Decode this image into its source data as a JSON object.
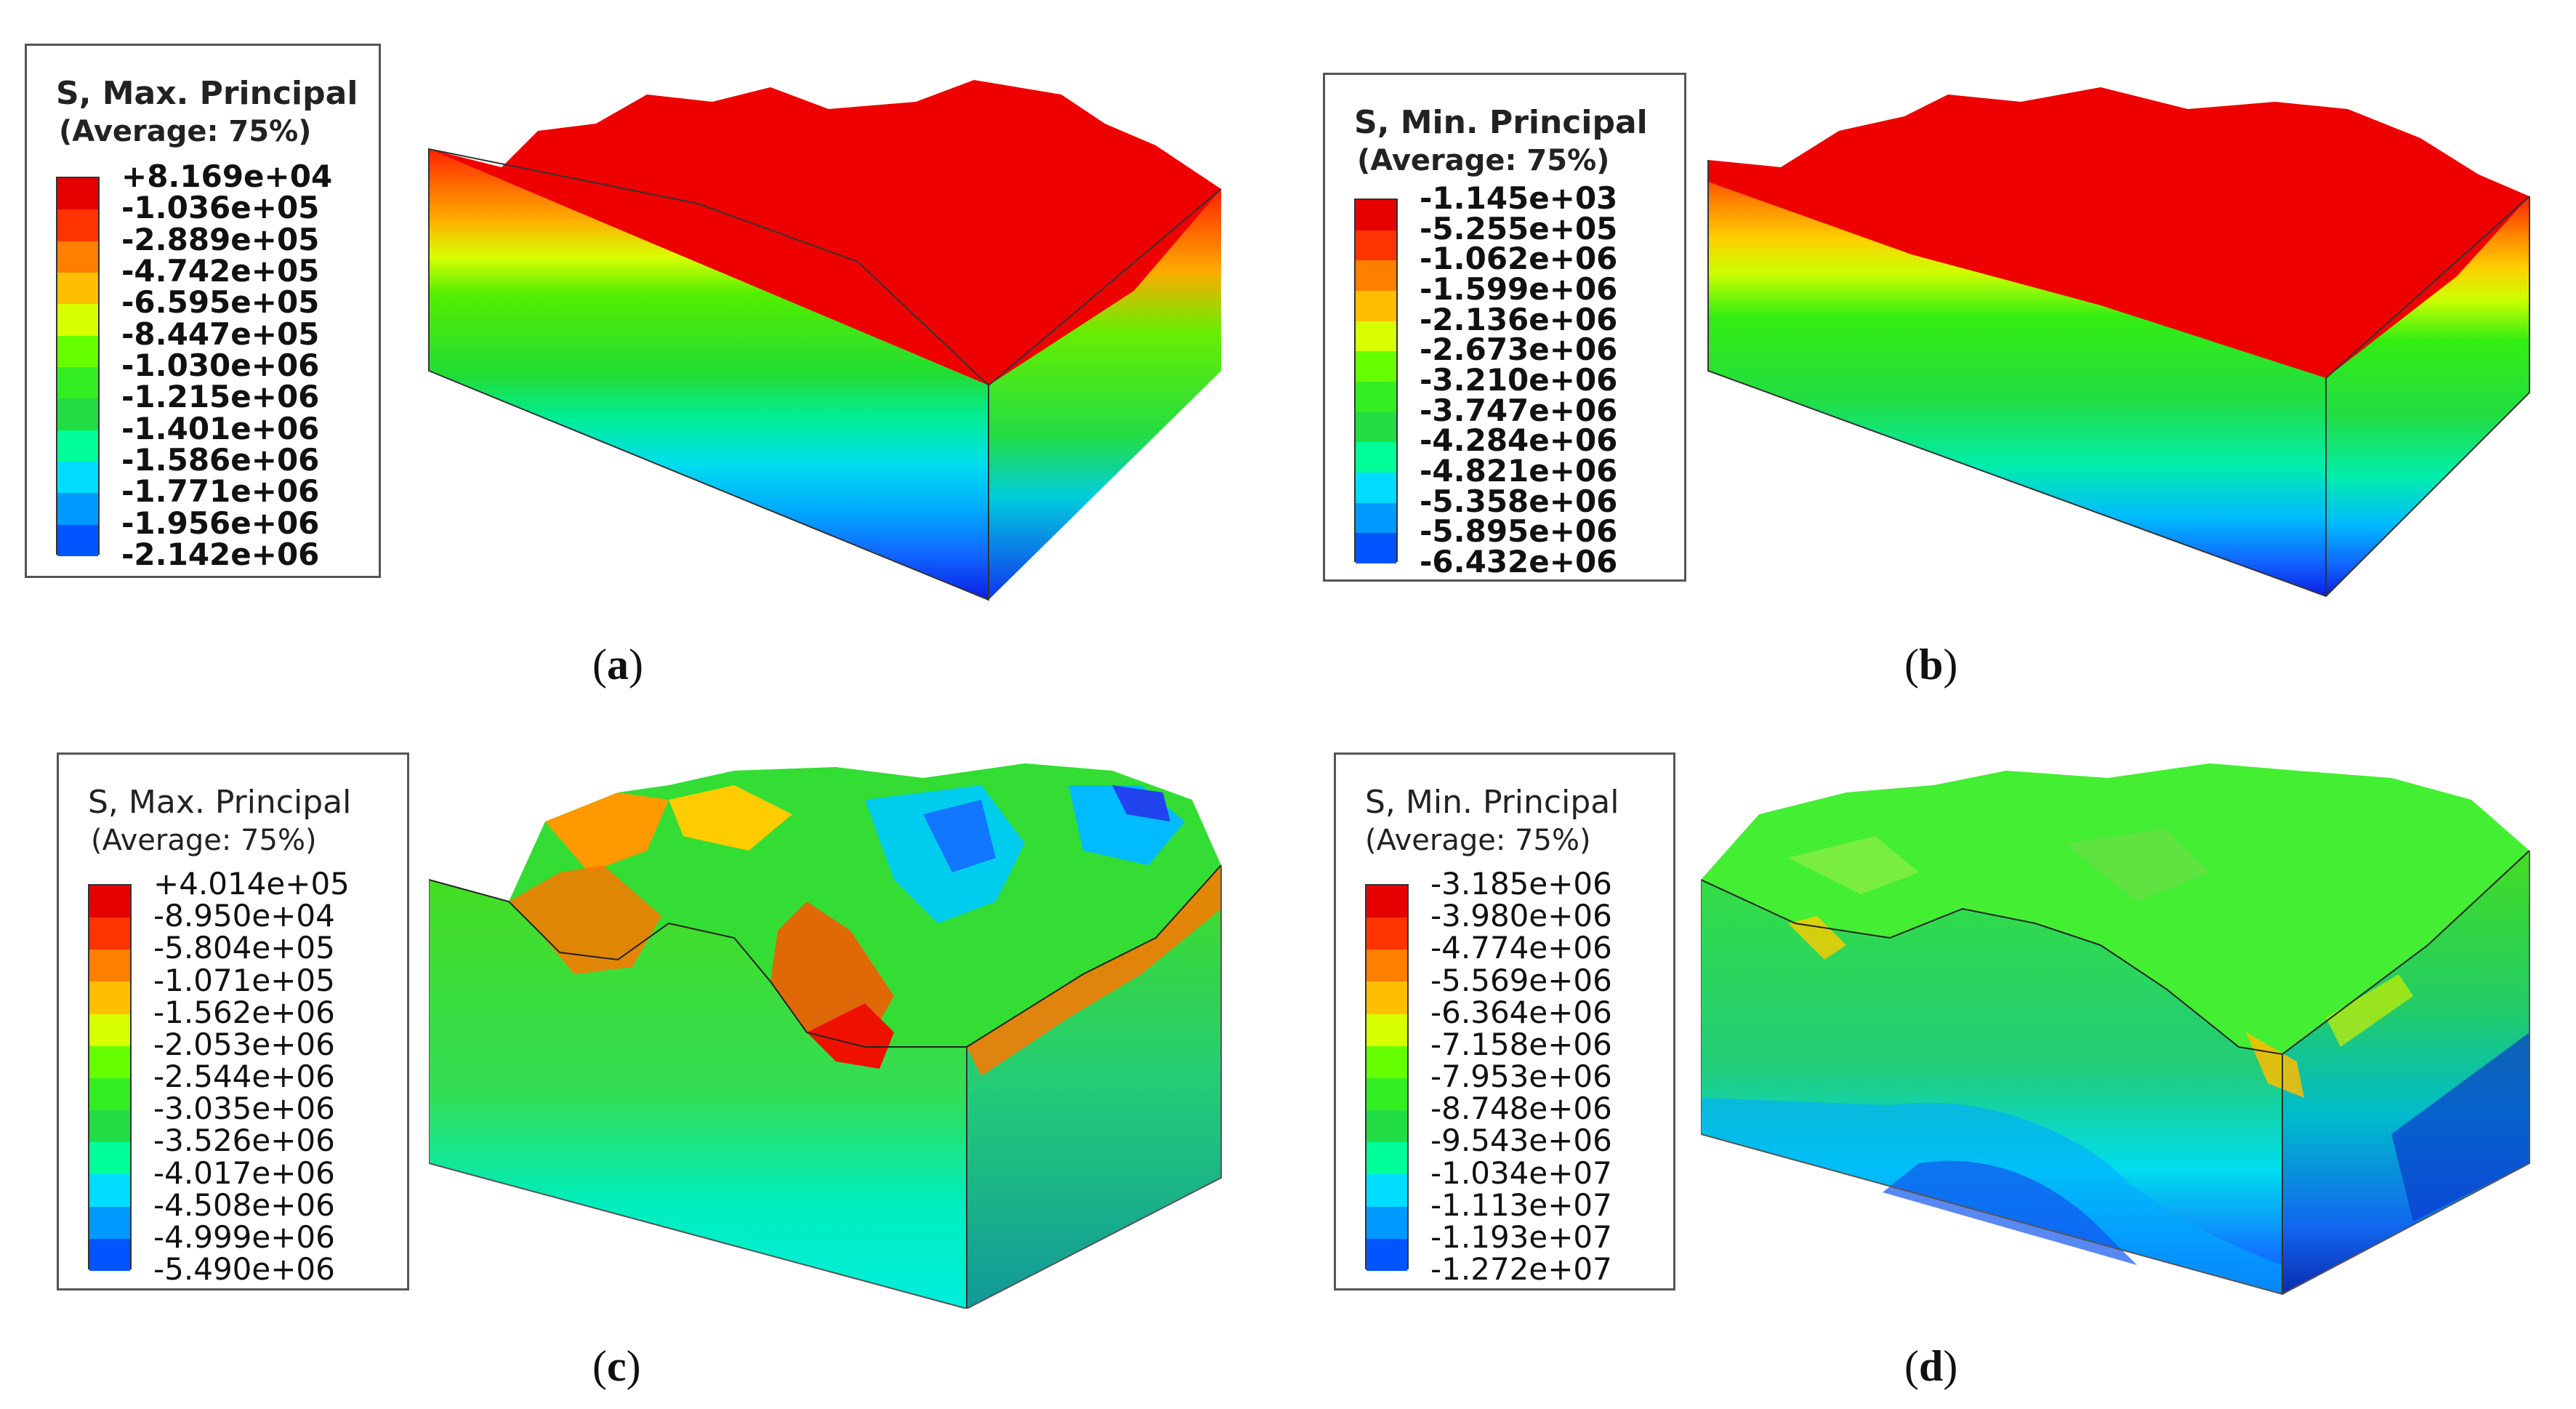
{
  "colors": {
    "scale": [
      "#e60000",
      "#ff3300",
      "#ff7f00",
      "#ffbe00",
      "#d8ff00",
      "#66ff00",
      "#33ee22",
      "#22dd44",
      "#00ff99",
      "#00ddff",
      "#0099ff",
      "#0055ff",
      "#0000ee"
    ]
  },
  "panels": [
    {
      "id": "a",
      "legend_title": "S, Max. Principal",
      "legend_subtitle": "(Average: 75%)",
      "values": [
        "+8.169e+04",
        "-1.036e+05",
        "-2.889e+05",
        "-4.742e+05",
        "-6.595e+05",
        "-8.447e+05",
        "-1.030e+06",
        "-1.215e+06",
        "-1.401e+06",
        "-1.586e+06",
        "-1.771e+06",
        "-1.956e+06",
        "-2.142e+06"
      ],
      "caption": "a"
    },
    {
      "id": "b",
      "legend_title": "S, Min. Principal",
      "legend_subtitle": "(Average: 75%)",
      "values": [
        "-1.145e+03",
        "-5.255e+05",
        "-1.062e+06",
        "-1.599e+06",
        "-2.136e+06",
        "-2.673e+06",
        "-3.210e+06",
        "-3.747e+06",
        "-4.284e+06",
        "-4.821e+06",
        "-5.358e+06",
        "-5.895e+06",
        "-6.432e+06"
      ],
      "caption": "b"
    },
    {
      "id": "c",
      "legend_title": "S, Max. Principal",
      "legend_subtitle": "(Average: 75%)",
      "values": [
        "+4.014e+05",
        "-8.950e+04",
        "-5.804e+05",
        "-1.071e+05",
        "-1.562e+06",
        "-2.053e+06",
        "-2.544e+06",
        "-3.035e+06",
        "-3.526e+06",
        "-4.017e+06",
        "-4.508e+06",
        "-4.999e+06",
        "-5.490e+06"
      ],
      "caption": "c"
    },
    {
      "id": "d",
      "legend_title": "S, Min. Principal",
      "legend_subtitle": "(Average: 75%)",
      "values": [
        "-3.185e+06",
        "-3.980e+06",
        "-4.774e+06",
        "-5.569e+06",
        "-6.364e+06",
        "-7.158e+06",
        "-7.953e+06",
        "-8.748e+06",
        "-9.543e+06",
        "-1.034e+07",
        "-1.113e+07",
        "-1.193e+07",
        "-1.272e+07"
      ],
      "caption": "d"
    }
  ]
}
